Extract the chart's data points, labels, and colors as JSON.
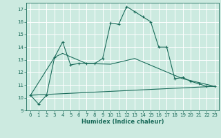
{
  "xlabel": "Humidex (Indice chaleur)",
  "bg_color": "#cceae0",
  "grid_color": "#ffffff",
  "line_color": "#1a6b5a",
  "xlim": [
    -0.5,
    23.5
  ],
  "ylim": [
    9,
    17.5
  ],
  "yticks": [
    9,
    10,
    11,
    12,
    13,
    14,
    15,
    16,
    17
  ],
  "xticks": [
    0,
    1,
    2,
    3,
    4,
    5,
    6,
    7,
    8,
    9,
    10,
    11,
    12,
    13,
    14,
    15,
    16,
    17,
    18,
    19,
    20,
    21,
    22,
    23
  ],
  "curve1_x": [
    0,
    1,
    2,
    3,
    4,
    5,
    6,
    7,
    8,
    9,
    10,
    11,
    12,
    13,
    14,
    15,
    16,
    17,
    18,
    19,
    20,
    21,
    22,
    23
  ],
  "curve1_y": [
    10.2,
    9.5,
    10.2,
    13.2,
    14.4,
    12.6,
    12.7,
    12.7,
    12.7,
    13.1,
    15.9,
    15.8,
    17.2,
    16.8,
    16.4,
    16.0,
    14.0,
    14.0,
    11.5,
    11.6,
    11.3,
    11.1,
    10.9,
    10.9
  ],
  "curve2_x": [
    0,
    3,
    4,
    7,
    10,
    13,
    19,
    23
  ],
  "curve2_y": [
    10.2,
    13.2,
    13.5,
    12.7,
    12.65,
    13.1,
    11.5,
    10.9
  ],
  "curve3_x": [
    0,
    23
  ],
  "curve3_y": [
    10.2,
    10.9
  ]
}
